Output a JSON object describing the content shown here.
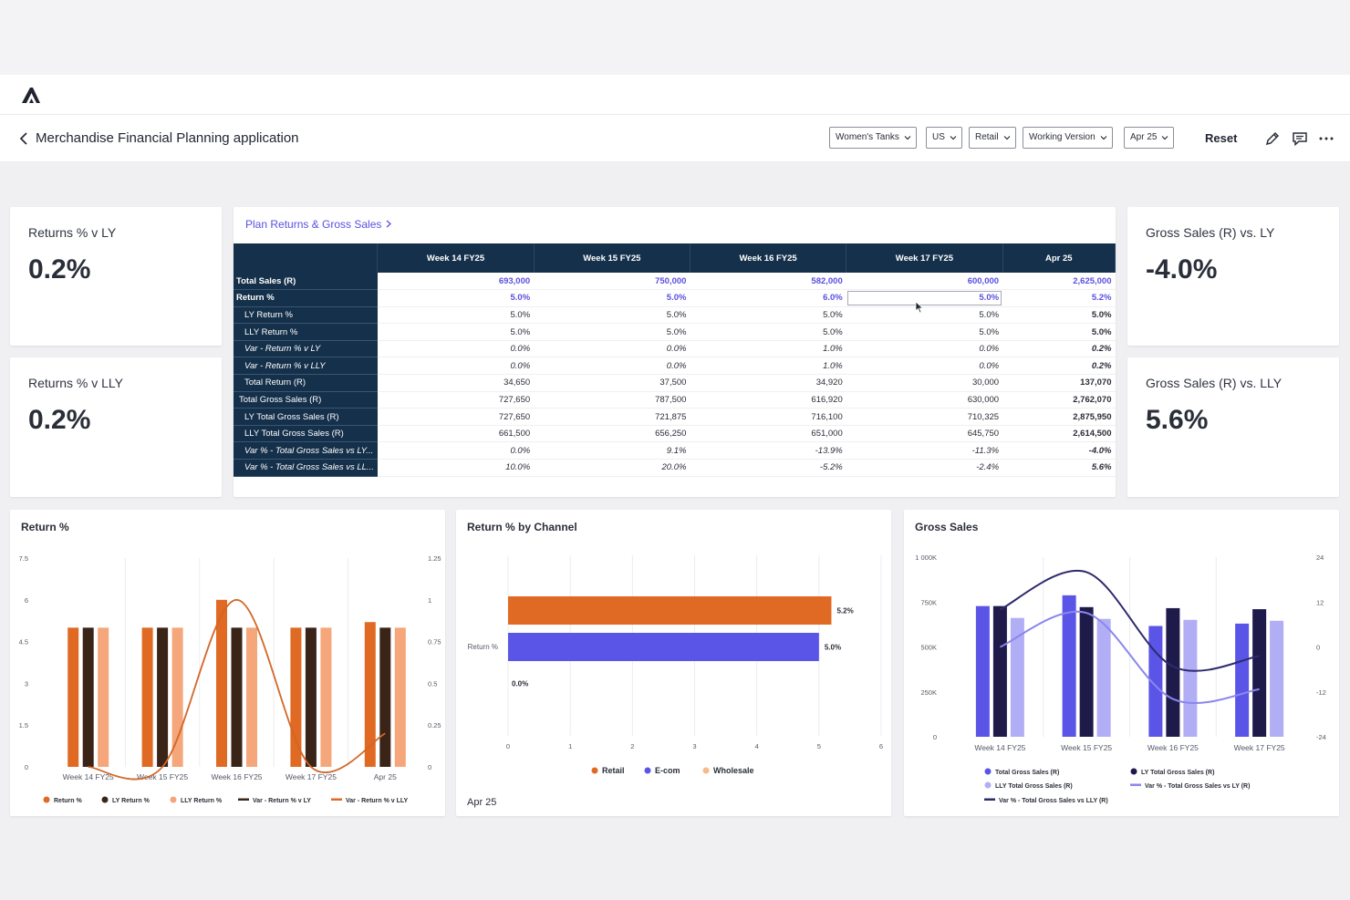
{
  "app": {
    "title": "Merchandise Financial Planning application",
    "logo": "anaplan-logo"
  },
  "filters": [
    "Women's Tanks",
    "US",
    "Retail",
    "Working Version",
    "Apr 25"
  ],
  "header": {
    "reset_label": "Reset",
    "icons": [
      "pencil-icon",
      "comment-icon",
      "more-icon"
    ]
  },
  "kpis": [
    {
      "label": "Returns % v LY",
      "value": "0.2%"
    },
    {
      "label": "Returns % v LLY",
      "value": "0.2%"
    },
    {
      "label": "Gross Sales (R) vs. LY",
      "value": "-4.0%"
    },
    {
      "label": "Gross Sales (R) vs. LLY",
      "value": "5.6%"
    }
  ],
  "grid": {
    "link": "Plan Returns & Gross Sales",
    "columns": [
      "Week 14 FY25",
      "Week 15 FY25",
      "Week 16 FY25",
      "Week 17 FY25",
      "Apr 25"
    ],
    "rows": [
      {
        "label": "Total Sales (R)",
        "values": [
          "693,000",
          "750,000",
          "582,000",
          "600,000",
          "2,625,000"
        ]
      },
      {
        "label": "Return %",
        "values": [
          "5.0%",
          "5.0%",
          "6.0%",
          "5.0%",
          "5.2%"
        ]
      },
      {
        "label": "LY Return %",
        "values": [
          "5.0%",
          "5.0%",
          "5.0%",
          "5.0%",
          "5.0%"
        ]
      },
      {
        "label": "LLY Return %",
        "values": [
          "5.0%",
          "5.0%",
          "5.0%",
          "5.0%",
          "5.0%"
        ]
      },
      {
        "label": "Var - Return % v LY",
        "values": [
          "0.0%",
          "0.0%",
          "1.0%",
          "0.0%",
          "0.2%"
        ]
      },
      {
        "label": "Var - Return % v LLY",
        "values": [
          "0.0%",
          "0.0%",
          "1.0%",
          "0.0%",
          "0.2%"
        ]
      },
      {
        "label": "Total Return (R)",
        "values": [
          "34,650",
          "37,500",
          "34,920",
          "30,000",
          "137,070"
        ]
      },
      {
        "label": "Total Gross Sales (R)",
        "values": [
          "727,650",
          "787,500",
          "616,920",
          "630,000",
          "2,762,070"
        ]
      },
      {
        "label": "LY Total Gross Sales (R)",
        "values": [
          "727,650",
          "721,875",
          "716,100",
          "710,325",
          "2,875,950"
        ]
      },
      {
        "label": "LLY Total Gross Sales (R)",
        "values": [
          "661,500",
          "656,250",
          "651,000",
          "645,750",
          "2,614,500"
        ]
      },
      {
        "label": "Var % - Total Gross Sales vs LY...",
        "values": [
          "0.0%",
          "9.1%",
          "-13.9%",
          "-11.3%",
          "-4.0%"
        ]
      },
      {
        "label": "Var % - Total Gross Sales vs LL...",
        "values": [
          "10.0%",
          "20.0%",
          "-5.2%",
          "-2.4%",
          "5.6%"
        ]
      }
    ]
  },
  "chart_data": [
    {
      "type": "bar",
      "title": "Return %",
      "categories": [
        "Week 14 FY25",
        "Week 15 FY25",
        "Week 16 FY25",
        "Week 17 FY25",
        "Apr 25"
      ],
      "ylim": [
        0,
        7.5
      ],
      "y_ticks": [
        "0",
        "1.5",
        "3",
        "4.5",
        "6",
        "7.5"
      ],
      "y2lim": [
        0,
        1.25
      ],
      "y2_ticks": [
        "0",
        "0.25",
        "0.5",
        "0.75",
        "1",
        "1.25"
      ],
      "series": [
        {
          "name": "Return %",
          "kind": "bar",
          "color": "#e06a24",
          "values": [
            5.0,
            5.0,
            6.0,
            5.0,
            5.2
          ]
        },
        {
          "name": "LY Return %",
          "kind": "bar",
          "color": "#3a2418",
          "values": [
            5.0,
            5.0,
            5.0,
            5.0,
            5.0
          ]
        },
        {
          "name": "LLY Return %",
          "kind": "bar",
          "color": "#f5a67a",
          "values": [
            5.0,
            5.0,
            5.0,
            5.0,
            5.0
          ]
        },
        {
          "name": "Var - Return % v LY",
          "kind": "line",
          "axis": "right",
          "color": "#3a2418",
          "values": [
            0.0,
            0.0,
            1.0,
            0.0,
            0.2
          ]
        },
        {
          "name": "Var - Return % v LLY",
          "kind": "line",
          "axis": "right",
          "color": "#e06a24",
          "values": [
            0.0,
            0.0,
            1.0,
            0.0,
            0.2
          ]
        }
      ]
    },
    {
      "type": "bar",
      "orientation": "horizontal",
      "title": "Return % by Channel",
      "categories": [
        "Return %"
      ],
      "xlim": [
        0,
        6
      ],
      "x_ticks": [
        "0",
        "1",
        "2",
        "3",
        "4",
        "5",
        "6"
      ],
      "series": [
        {
          "name": "Retail",
          "color": "#e06a24",
          "values": [
            5.2
          ],
          "label": "5.2%"
        },
        {
          "name": "E-com",
          "color": "#5a55e6",
          "values": [
            5.0
          ],
          "label": "5.0%"
        },
        {
          "name": "Wholesale",
          "color": "#f5b98a",
          "values": [
            0.0
          ],
          "label": "0.0%"
        }
      ],
      "footer": "Apr 25"
    },
    {
      "type": "bar",
      "title": "Gross Sales",
      "categories": [
        "Week 14 FY25",
        "Week 15 FY25",
        "Week 16 FY25",
        "Week 17 FY25"
      ],
      "ylim": [
        0,
        1000
      ],
      "y_ticks": [
        "0",
        "250K",
        "500K",
        "750K",
        "1 000K"
      ],
      "y2lim": [
        -24,
        24
      ],
      "y2_ticks": [
        "-24",
        "-12",
        "0",
        "12",
        "24"
      ],
      "series": [
        {
          "name": "Total Gross Sales (R)",
          "kind": "bar",
          "color": "#5a55e6",
          "values": [
            727.65,
            787.5,
            616.92,
            630.0
          ]
        },
        {
          "name": "LY Total Gross Sales (R)",
          "kind": "bar",
          "color": "#1e1b4b",
          "values": [
            727.65,
            721.875,
            716.1,
            710.325
          ]
        },
        {
          "name": "LLY Total Gross Sales (R)",
          "kind": "bar",
          "color": "#b1aef5",
          "values": [
            661.5,
            656.25,
            651.0,
            645.75
          ]
        },
        {
          "name": "Var % - Total Gross Sales vs LY (R)",
          "kind": "line",
          "axis": "right",
          "color": "#8a86ee",
          "values": [
            0.0,
            9.1,
            -13.9,
            -11.3
          ]
        },
        {
          "name": "Var % - Total Gross Sales vs LLY (R)",
          "kind": "line",
          "axis": "right",
          "color": "#2e2a6e",
          "values": [
            10.0,
            20.0,
            -5.2,
            -2.4
          ]
        }
      ]
    }
  ]
}
